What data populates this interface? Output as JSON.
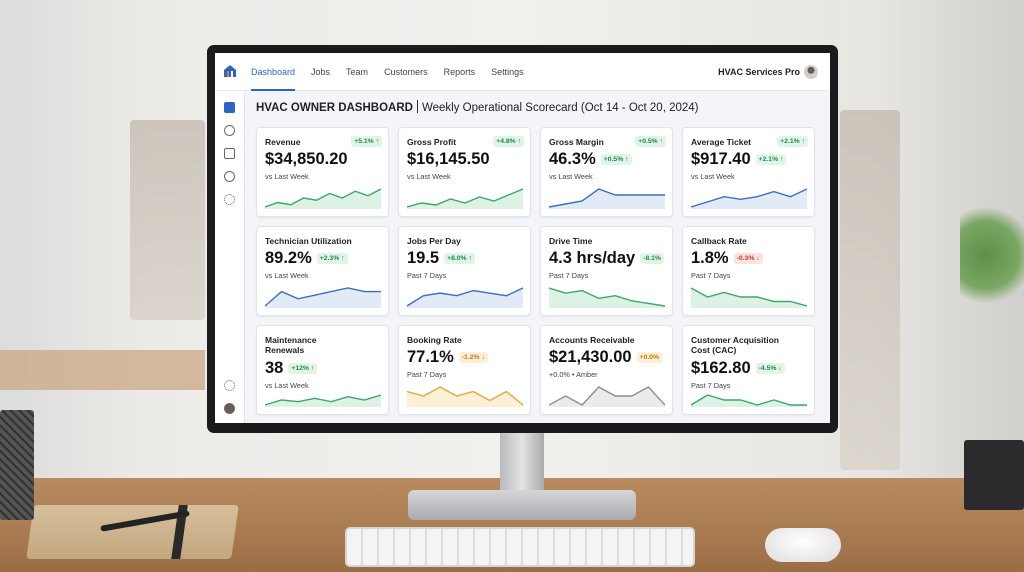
{
  "brand": "HVAC Services Pro",
  "nav": [
    "Dashboard",
    "Jobs",
    "Team",
    "Customers",
    "Reports",
    "Settings"
  ],
  "header": {
    "title": "HVAC OWNER DASHBOARD",
    "subtitle": "Weekly Operational Scorecard (Oct 14 - Oct 20, 2024)"
  },
  "cards": [
    {
      "title": "Revenue",
      "value": "$34,850.20",
      "badge": "+5.1% ↑",
      "badge_tone": "green",
      "sub": "vs Last Week",
      "color": "green",
      "spark": [
        2,
        3,
        2.5,
        4,
        3.5,
        5,
        4,
        5.5,
        4.5,
        6
      ]
    },
    {
      "title": "Gross Profit",
      "value": "$16,145.50",
      "badge": "+4.8% ↑",
      "badge_tone": "green",
      "sub": "vs Last Week",
      "color": "green",
      "spark": [
        2,
        3,
        2.5,
        4,
        3,
        4.5,
        3.5,
        5,
        6.5
      ]
    },
    {
      "title": "Gross Margin",
      "value": "46.3%",
      "badge": "+0.5% ↑",
      "badge_tone": "green",
      "delta": "+0.5% ↑",
      "delta_tone": "green",
      "sub": "vs Last Week",
      "color": "blue",
      "spark": [
        3,
        3.5,
        4,
        6,
        5,
        5,
        5,
        5
      ]
    },
    {
      "title": "Average Ticket",
      "value": "$917.40",
      "badge": "+2.1% ↑",
      "badge_tone": "green",
      "delta": "+2.1% ↑",
      "delta_tone": "green",
      "sub": "vs Last Week",
      "color": "blue",
      "spark": [
        2,
        3,
        4,
        3.5,
        4,
        5,
        4,
        5.5
      ]
    },
    {
      "title": "Technician Utilization",
      "value": "89.2%",
      "delta": "+2.3% ↑",
      "delta_tone": "green",
      "sub": "vs Last Week",
      "color": "blue",
      "spark": [
        2,
        4,
        3,
        3.5,
        4,
        4.5,
        4,
        4
      ]
    },
    {
      "title": "Jobs Per Day",
      "value": "19.5",
      "delta": "+8.0% ↑",
      "delta_tone": "green",
      "sub": "Past 7 Days",
      "color": "blue",
      "spark": [
        2,
        4,
        4.5,
        4,
        5,
        4.5,
        4,
        5.5
      ]
    },
    {
      "title": "Drive Time",
      "value": "4.3 hrs/day",
      "delta": "-8.1%",
      "delta_tone": "green",
      "sub": "Past 7 Days",
      "color": "green",
      "spark": [
        5,
        4,
        4.5,
        3,
        3.5,
        2.5,
        2,
        1.5
      ]
    },
    {
      "title": "Callback Rate",
      "value": "1.8%",
      "delta": "-0.3% ↓",
      "delta_tone": "red",
      "sub": "Past 7 Days",
      "color": "green",
      "spark": [
        4,
        3,
        3.5,
        3,
        3,
        2.5,
        2.5,
        2
      ]
    },
    {
      "title": "Maintenance Renewals",
      "value": "38",
      "delta": "+12% ↑",
      "delta_tone": "green",
      "sub": "vs Last Week",
      "color": "green",
      "spark": [
        2,
        3.5,
        3,
        4,
        3,
        4.5,
        3.5,
        5
      ]
    },
    {
      "title": "Booking Rate",
      "value": "77.1%",
      "delta": "-1.2% ↓",
      "delta_tone": "orange",
      "sub": "Past 7 Days",
      "color": "orange",
      "spark": [
        3,
        2.5,
        3.5,
        2.5,
        3,
        2,
        3,
        1.5
      ]
    },
    {
      "title": "Accounts Receivable",
      "value": "$21,430.00",
      "delta": "+0.0%",
      "delta_tone": "orange",
      "sub": "+0.0% • Amber",
      "color": "gray",
      "spark": [
        3,
        3.5,
        3,
        4,
        3.5,
        3.5,
        4,
        3
      ]
    },
    {
      "title": "Customer Acquisition Cost (CAC)",
      "value": "$162.80",
      "delta": "-4.5% ↓",
      "delta_tone": "green",
      "sub": "Past 7 Days",
      "color": "green",
      "spark": [
        2,
        3,
        2.5,
        2.5,
        2,
        2.5,
        2,
        2
      ]
    }
  ]
}
